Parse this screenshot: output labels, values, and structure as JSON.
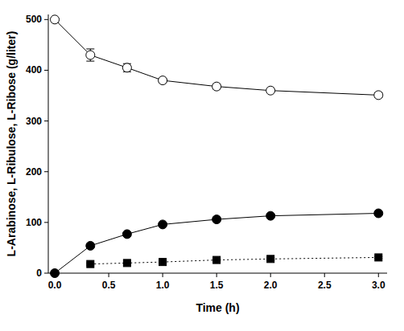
{
  "chart_data": {
    "type": "line",
    "x_label": "Time (h)",
    "y_label": "L-Arabinose, L-Ribulose, L-Ribose (g/liter)",
    "x": [
      0,
      0.33,
      0.67,
      1.0,
      1.5,
      2.0,
      3.0
    ],
    "xlim": [
      -0.06,
      3.08
    ],
    "xticks": [
      {
        "value": 0,
        "label": "0.0"
      },
      {
        "value": 0.5,
        "label": "0.5"
      },
      {
        "value": 1,
        "label": "1.0"
      },
      {
        "value": 1.5,
        "label": "1.5"
      },
      {
        "value": 2,
        "label": "2.0"
      },
      {
        "value": 2.5,
        "label": "2.5"
      },
      {
        "value": 3,
        "label": "3.0"
      }
    ],
    "ylim": [
      0,
      510
    ],
    "yticks": [
      0,
      100,
      200,
      300,
      400,
      500
    ],
    "grid": false,
    "series": [
      {
        "name": "L-Arabinose",
        "color": "#000000",
        "marker": "open-circle",
        "line_style": "solid",
        "values": [
          500,
          430,
          405,
          380,
          368,
          360,
          351
        ],
        "errors": [
          0,
          12,
          8,
          4,
          5,
          3,
          5
        ]
      },
      {
        "name": "L-Ribulose",
        "color": "#000000",
        "marker": "circle",
        "line_style": "solid",
        "values": [
          0,
          54,
          77,
          96,
          106,
          113,
          118
        ],
        "errors": [
          0,
          3,
          3,
          3,
          3,
          3,
          3
        ]
      },
      {
        "name": "L-Ribose",
        "color": "#000000",
        "marker": "square",
        "line_style": "dotted",
        "values": [
          null,
          18,
          20,
          22,
          26,
          28,
          31
        ],
        "errors": [
          null,
          2,
          2,
          2,
          2,
          2,
          2
        ]
      }
    ]
  }
}
